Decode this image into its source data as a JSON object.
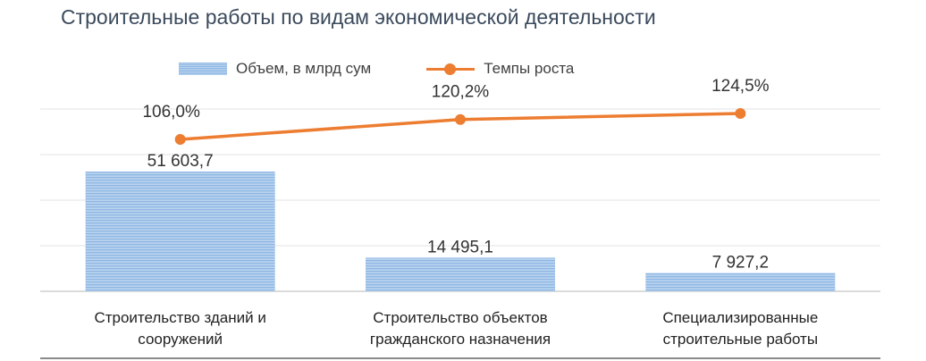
{
  "chart_data": {
    "type": "bar",
    "title": "Строительные работы по видам экономической деятельности",
    "categories": [
      [
        "Строительство зданий и",
        "сооружений"
      ],
      [
        "Строительство объектов",
        "гражданского назначения"
      ],
      [
        "Специализированные",
        "строительные работы"
      ]
    ],
    "series": [
      {
        "name": "Объем, в млрд сум",
        "type": "bar",
        "values": [
          51603.7,
          14495.1,
          7927.2
        ],
        "labels": [
          "51 603,7",
          "14 495,1",
          "7 927,2"
        ],
        "color": "#9dc3e6"
      },
      {
        "name": "Темпы роста",
        "type": "line",
        "values": [
          106.0,
          120.2,
          124.5
        ],
        "labels": [
          "106,0%",
          "120,2%",
          "124,5%"
        ],
        "color": "#ed7d31"
      }
    ],
    "grid": true,
    "legend": "top"
  }
}
